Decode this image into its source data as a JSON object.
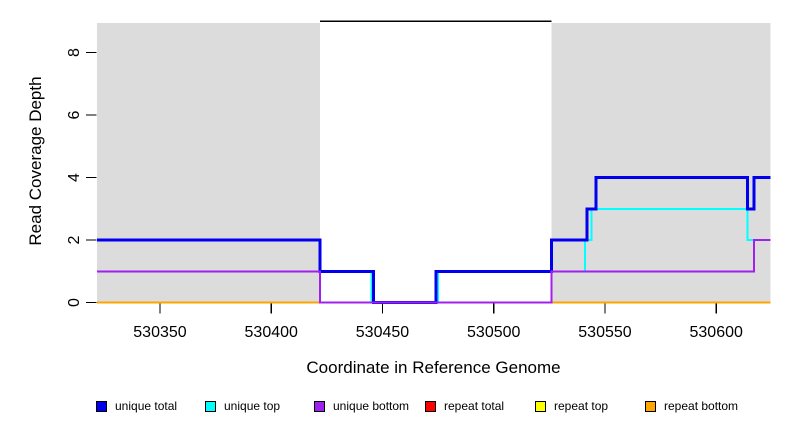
{
  "chart_data": {
    "type": "line",
    "subtype": "step-coverage",
    "title": "",
    "xlabel": "Coordinate in Reference Genome",
    "ylabel": "Read Coverage Depth",
    "xlim": [
      530321.7,
      530624.4
    ],
    "ylim": [
      0,
      9
    ],
    "grid": "off",
    "x_ticks": {
      "values": [
        530350,
        530400,
        530450,
        530500,
        530550,
        530600
      ],
      "labels": [
        "530350",
        "530400",
        "530450",
        "530500",
        "530550",
        "530600"
      ]
    },
    "y_ticks": {
      "values": [
        0,
        2,
        4,
        6,
        8
      ],
      "labels": [
        "0",
        "2",
        "4",
        "6",
        "8"
      ]
    },
    "shaded_regions": [
      {
        "name": "left-gray-region",
        "x0": 530321.7,
        "x1": 530422,
        "color": "#DCDCDC"
      },
      {
        "name": "right-gray-region",
        "x0": 530526,
        "x1": 530624.4,
        "color": "#DCDCDC"
      }
    ],
    "top_line": {
      "x0": 530422,
      "x1": 530526,
      "y": 9,
      "color": "#000000"
    },
    "series": [
      {
        "name": "repeat total",
        "color": "#FF0000",
        "step_points": [
          [
            530321.7,
            0
          ],
          [
            530624.4,
            0
          ]
        ]
      },
      {
        "name": "repeat top",
        "color": "#FFFF00",
        "step_points": [
          [
            530321.7,
            0
          ],
          [
            530624.4,
            0
          ]
        ]
      },
      {
        "name": "repeat bottom",
        "color": "#FFA500",
        "step_points": [
          [
            530321.7,
            0
          ],
          [
            530624.4,
            0
          ]
        ]
      },
      {
        "name": "unique top",
        "color": "#00FFFF",
        "step_points": [
          [
            530321.7,
            1
          ],
          [
            530445,
            1
          ],
          [
            530445,
            0
          ],
          [
            530475,
            0
          ],
          [
            530475,
            1
          ],
          [
            530541,
            1
          ],
          [
            530541,
            2
          ],
          [
            530544,
            2
          ],
          [
            530544,
            3
          ],
          [
            530614,
            3
          ],
          [
            530614,
            2
          ],
          [
            530624.4,
            2
          ]
        ]
      },
      {
        "name": "unique total",
        "color": "#0000EE",
        "step_points": [
          [
            530321.7,
            2
          ],
          [
            530422,
            2
          ],
          [
            530422,
            1
          ],
          [
            530446,
            1
          ],
          [
            530446,
            0
          ],
          [
            530474,
            0
          ],
          [
            530474,
            1
          ],
          [
            530526,
            1
          ],
          [
            530526,
            2
          ],
          [
            530542,
            2
          ],
          [
            530542,
            3
          ],
          [
            530546,
            3
          ],
          [
            530546,
            4
          ],
          [
            530614,
            4
          ],
          [
            530614,
            3
          ],
          [
            530617,
            3
          ],
          [
            530617,
            4
          ],
          [
            530624.4,
            4
          ]
        ]
      },
      {
        "name": "unique bottom",
        "color": "#A020F0",
        "step_points": [
          [
            530321.7,
            1
          ],
          [
            530422,
            1
          ],
          [
            530422,
            0
          ],
          [
            530526,
            0
          ],
          [
            530526,
            1
          ],
          [
            530617,
            1
          ],
          [
            530617,
            2
          ],
          [
            530624.4,
            2
          ]
        ]
      }
    ]
  },
  "legend": {
    "items": [
      {
        "label": "unique total",
        "color": "#0000EE"
      },
      {
        "label": "unique top",
        "color": "#00FFFF"
      },
      {
        "label": "unique bottom",
        "color": "#A020F0"
      },
      {
        "label": "repeat total",
        "color": "#FF0000"
      },
      {
        "label": "repeat top",
        "color": "#FFFF00"
      },
      {
        "label": "repeat bottom",
        "color": "#FFA500"
      }
    ]
  }
}
